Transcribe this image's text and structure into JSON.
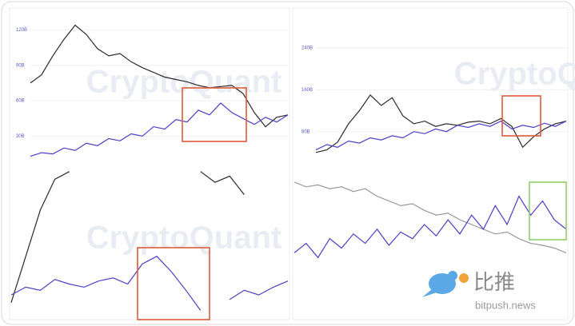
{
  "chart_data": [
    {
      "type": "line",
      "ylim": [
        10,
        125
      ],
      "yticks": [
        {
          "value": 30,
          "label": "30B"
        },
        {
          "value": 60,
          "label": "60B"
        },
        {
          "value": 90,
          "label": "90B"
        },
        {
          "value": 120,
          "label": "120B"
        }
      ],
      "series": [
        {
          "color": "#2b2b2b",
          "values": [
            75,
            82,
            98,
            112,
            124,
            116,
            104,
            98,
            100,
            93,
            88,
            84,
            80,
            78,
            76,
            73,
            71,
            72,
            73,
            66,
            50,
            38,
            46,
            48
          ]
        },
        {
          "color": "#4b3fc8",
          "values": [
            13,
            16,
            15,
            20,
            18,
            24,
            22,
            28,
            26,
            32,
            30,
            38,
            36,
            44,
            42,
            52,
            48,
            58,
            50,
            45,
            40,
            46,
            42,
            48
          ]
        }
      ]
    },
    {
      "type": "line",
      "ylim": [
        26,
        286
      ],
      "yticks": [
        {
          "value": 80,
          "label": "80B"
        },
        {
          "value": 160,
          "label": "160B"
        },
        {
          "value": 240,
          "label": "240B"
        }
      ],
      "series": [
        {
          "color": "#2b2b2b",
          "values": [
            40,
            45,
            60,
            95,
            120,
            150,
            130,
            145,
            110,
            95,
            100,
            90,
            95,
            92,
            98,
            100,
            95,
            105,
            90,
            50,
            70,
            85,
            95,
            100
          ]
        },
        {
          "color": "#4b3fc8",
          "values": [
            45,
            55,
            50,
            62,
            58,
            68,
            64,
            72,
            68,
            80,
            76,
            85,
            80,
            92,
            88,
            95,
            90,
            100,
            85,
            92,
            88,
            96,
            90,
            100
          ]
        }
      ]
    },
    {
      "type": "line",
      "ylim": [
        0,
        100
      ],
      "series": [
        {
          "color": "#2b2b2b",
          "values": [
            10,
            40,
            70,
            90,
            95,
            null,
            null,
            null,
            null,
            null,
            null,
            null,
            null,
            95,
            88,
            92,
            80,
            null,
            null,
            null
          ]
        },
        {
          "color": "#4b3fc8",
          "values": [
            15,
            20,
            18,
            25,
            22,
            20,
            24,
            26,
            22,
            35,
            40,
            30,
            18,
            5,
            null,
            12,
            18,
            15,
            20,
            24
          ]
        }
      ]
    },
    {
      "type": "line",
      "ylim": [
        0,
        100
      ],
      "series": [
        {
          "color": "#9a9a9a",
          "values": [
            95,
            90,
            92,
            88,
            90,
            85,
            88,
            80,
            75,
            70,
            72,
            65,
            60,
            62,
            55,
            50,
            45,
            40,
            42,
            35,
            30,
            28,
            25,
            20
          ]
        },
        {
          "color": "#4b3fc8",
          "values": [
            20,
            30,
            15,
            35,
            25,
            40,
            30,
            45,
            28,
            42,
            35,
            50,
            38,
            55,
            40,
            60,
            45,
            70,
            50,
            80,
            60,
            75,
            55,
            45
          ]
        }
      ]
    }
  ],
  "watermarks": [
    "CryptoQuant",
    "CryptoQuant",
    "CryptoQuant"
  ],
  "brand": {
    "name": "比推",
    "site": "bitpush.news"
  }
}
